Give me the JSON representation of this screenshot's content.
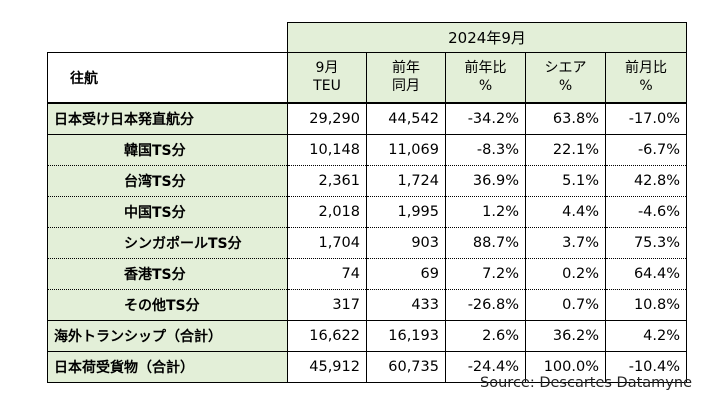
{
  "table": {
    "period": "2024年9月",
    "row_header": "往航",
    "columns": [
      [
        "9月",
        "TEU"
      ],
      [
        "前年",
        "同月"
      ],
      [
        "前年比",
        "%"
      ],
      [
        "シエア",
        "%"
      ],
      [
        "前月比",
        "%"
      ]
    ],
    "rows": [
      {
        "label": "日本受け日本発直航分",
        "cells": [
          "29,290",
          "44,542",
          "-34.2%",
          "63.8%",
          "-17.0%"
        ]
      },
      {
        "label": "韓国TS分",
        "cells": [
          "10,148",
          "11,069",
          "-8.3%",
          "22.1%",
          "-6.7%"
        ]
      },
      {
        "label": "台湾TS分",
        "cells": [
          "2,361",
          "1,724",
          "36.9%",
          "5.1%",
          "42.8%"
        ]
      },
      {
        "label": "中国TS分",
        "cells": [
          "2,018",
          "1,995",
          "1.2%",
          "4.4%",
          "-4.6%"
        ]
      },
      {
        "label": "シンガポールTS分",
        "cells": [
          "1,704",
          "903",
          "88.7%",
          "3.7%",
          "75.3%"
        ]
      },
      {
        "label": "香港TS分",
        "cells": [
          "74",
          "69",
          "7.2%",
          "0.2%",
          "64.4%"
        ]
      },
      {
        "label": "その他TS分",
        "cells": [
          "317",
          "433",
          "-26.8%",
          "0.7%",
          "10.8%"
        ]
      },
      {
        "label": "海外トランシップ（合計）",
        "cells": [
          "16,622",
          "16,193",
          "2.6%",
          "36.2%",
          "4.2%"
        ]
      },
      {
        "label": "日本荷受貨物（合計）",
        "cells": [
          "45,912",
          "60,735",
          "-24.4%",
          "100.0%",
          "-10.4%"
        ]
      }
    ]
  },
  "source": "Source:  Descartes Datamyne"
}
